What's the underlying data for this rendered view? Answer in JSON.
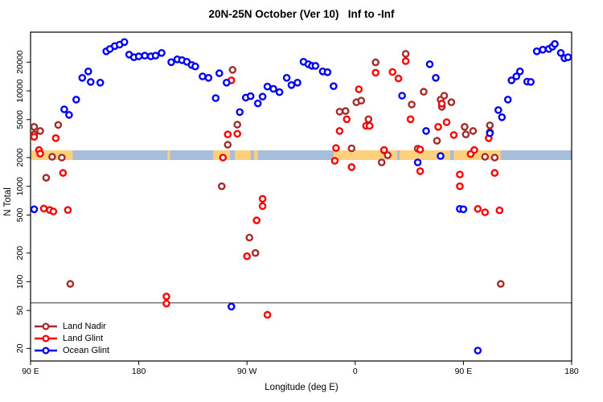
{
  "title": "20N-25N October (Ver 10)   Inf to -Inf",
  "chart_data": {
    "type": "scatter",
    "title": "20N-25N October (Ver 10)   Inf to -Inf",
    "xlabel": "Longitude (deg E)",
    "ylabel": "N Total",
    "y_scale": "log",
    "y_ticks": [
      20,
      50,
      100,
      200,
      500,
      1000,
      2000,
      5000,
      10000,
      20000
    ],
    "ylim": [
      15,
      41000
    ],
    "x_axis_span_deg": 450,
    "x_ticks": [
      {
        "pos": 0,
        "label": "90 E"
      },
      {
        "pos": 90,
        "label": "180"
      },
      {
        "pos": 180,
        "label": "90 W"
      },
      {
        "pos": 270,
        "label": "0"
      },
      {
        "pos": 360,
        "label": "90 E"
      },
      {
        "pos": 450,
        "label": "180"
      }
    ],
    "reference_line_y": 60,
    "band": {
      "description": "land/ocean strip at N Total ~2000",
      "value_center": 2100,
      "ocean_color": "#A8BDDB",
      "land_color": "#FCD07C",
      "land_segments_deg": [
        [
          0,
          35
        ],
        [
          114,
          116
        ],
        [
          152,
          166
        ],
        [
          170,
          183
        ],
        [
          186,
          189
        ],
        [
          252,
          305
        ],
        [
          307,
          349
        ],
        [
          352,
          391
        ]
      ]
    },
    "legend_position": "bottom-left",
    "grid": false,
    "series": [
      {
        "name": "Land Nadir",
        "color": "#A52A2A",
        "points": [
          [
            3,
            4200
          ],
          [
            3,
            3500
          ],
          [
            8,
            3800
          ],
          [
            13,
            1230
          ],
          [
            18,
            2040
          ],
          [
            23,
            4400
          ],
          [
            26,
            2000
          ],
          [
            33,
            95
          ],
          [
            159,
            1000
          ],
          [
            164,
            2730
          ],
          [
            168,
            16600
          ],
          [
            172,
            4430
          ],
          [
            182,
            290
          ],
          [
            187,
            200
          ],
          [
            257,
            6050
          ],
          [
            262,
            6150
          ],
          [
            267,
            2500
          ],
          [
            271,
            7600
          ],
          [
            275,
            7900
          ],
          [
            281,
            5050
          ],
          [
            287,
            19900
          ],
          [
            292,
            1780
          ],
          [
            294,
            2380
          ],
          [
            297,
            2120
          ],
          [
            312,
            24400
          ],
          [
            317,
            7200
          ],
          [
            322,
            2480
          ],
          [
            327,
            9800
          ],
          [
            338,
            3000
          ],
          [
            341,
            8100
          ],
          [
            344,
            8900
          ],
          [
            342,
            6800
          ],
          [
            350,
            7600
          ],
          [
            361,
            4200
          ],
          [
            362,
            3500
          ],
          [
            368,
            3800
          ],
          [
            378,
            2040
          ],
          [
            382,
            4350
          ],
          [
            382,
            3700
          ],
          [
            386,
            2000
          ],
          [
            391,
            95
          ]
        ]
      },
      {
        "name": "Land Glint",
        "color": "#FF0000",
        "points": [
          [
            3,
            3300
          ],
          [
            7,
            2400
          ],
          [
            8,
            2200
          ],
          [
            11,
            585
          ],
          [
            16,
            565
          ],
          [
            19,
            545
          ],
          [
            21,
            3200
          ],
          [
            27,
            1380
          ],
          [
            31,
            565
          ],
          [
            113,
            70
          ],
          [
            113,
            59
          ],
          [
            160,
            2000
          ],
          [
            164,
            3500
          ],
          [
            167,
            12900
          ],
          [
            172,
            3550
          ],
          [
            180,
            185
          ],
          [
            188,
            440
          ],
          [
            193,
            740
          ],
          [
            193,
            620
          ],
          [
            197,
            45
          ],
          [
            253,
            1850
          ],
          [
            254,
            2520
          ],
          [
            257,
            3800
          ],
          [
            263,
            5050
          ],
          [
            267,
            1590
          ],
          [
            273,
            10400
          ],
          [
            279,
            4300
          ],
          [
            282,
            4300
          ],
          [
            287,
            15500
          ],
          [
            294,
            2400
          ],
          [
            301,
            15800
          ],
          [
            306,
            13500
          ],
          [
            312,
            20500
          ],
          [
            316,
            5050
          ],
          [
            324,
            2430
          ],
          [
            324,
            1440
          ],
          [
            339,
            4200
          ],
          [
            342,
            7350
          ],
          [
            346,
            4700
          ],
          [
            352,
            3450
          ],
          [
            357,
            1330
          ],
          [
            357,
            1000
          ],
          [
            366,
            2180
          ],
          [
            369,
            2400
          ],
          [
            372,
            580
          ],
          [
            378,
            535
          ],
          [
            381,
            3200
          ],
          [
            386,
            1380
          ],
          [
            390,
            560
          ]
        ]
      },
      {
        "name": "Ocean Glint",
        "color": "#0202F2",
        "points": [
          [
            3,
            575
          ],
          [
            28,
            6400
          ],
          [
            32,
            5600
          ],
          [
            38,
            8100
          ],
          [
            43,
            13700
          ],
          [
            48,
            16000
          ],
          [
            50,
            12400
          ],
          [
            58,
            12200
          ],
          [
            63,
            26000
          ],
          [
            66,
            27500
          ],
          [
            70,
            29500
          ],
          [
            74,
            30500
          ],
          [
            78,
            32500
          ],
          [
            82,
            24000
          ],
          [
            86,
            22500
          ],
          [
            90,
            23000
          ],
          [
            95,
            23400
          ],
          [
            100,
            23000
          ],
          [
            104,
            23400
          ],
          [
            109,
            25000
          ],
          [
            117,
            20000
          ],
          [
            122,
            21400
          ],
          [
            126,
            21000
          ],
          [
            130,
            20200
          ],
          [
            134,
            18700
          ],
          [
            137,
            18000
          ],
          [
            143,
            14200
          ],
          [
            148,
            13700
          ],
          [
            154,
            8400
          ],
          [
            157,
            15300
          ],
          [
            163,
            12200
          ],
          [
            167,
            55
          ],
          [
            174,
            6000
          ],
          [
            179,
            8500
          ],
          [
            183,
            8800
          ],
          [
            189,
            7400
          ],
          [
            193,
            8700
          ],
          [
            197,
            11100
          ],
          [
            202,
            10500
          ],
          [
            207,
            9700
          ],
          [
            213,
            13700
          ],
          [
            217,
            11500
          ],
          [
            222,
            12200
          ],
          [
            227,
            20200
          ],
          [
            231,
            19000
          ],
          [
            234,
            18300
          ],
          [
            237,
            18300
          ],
          [
            243,
            16000
          ],
          [
            247,
            15700
          ],
          [
            252,
            11200
          ],
          [
            309,
            8900
          ],
          [
            322,
            1780
          ],
          [
            329,
            3800
          ],
          [
            332,
            19000
          ],
          [
            337,
            13700
          ],
          [
            341,
            2080
          ],
          [
            357,
            580
          ],
          [
            360,
            575
          ],
          [
            372,
            19
          ],
          [
            382,
            3600
          ],
          [
            389,
            6300
          ],
          [
            392,
            5300
          ],
          [
            397,
            8100
          ],
          [
            400,
            12900
          ],
          [
            404,
            14200
          ],
          [
            407,
            16000
          ],
          [
            413,
            12500
          ],
          [
            416,
            12400
          ],
          [
            421,
            26000
          ],
          [
            426,
            27000
          ],
          [
            431,
            27500
          ],
          [
            434,
            29000
          ],
          [
            436,
            31000
          ],
          [
            441,
            25000
          ],
          [
            444,
            22000
          ],
          [
            447,
            22500
          ]
        ]
      }
    ]
  }
}
